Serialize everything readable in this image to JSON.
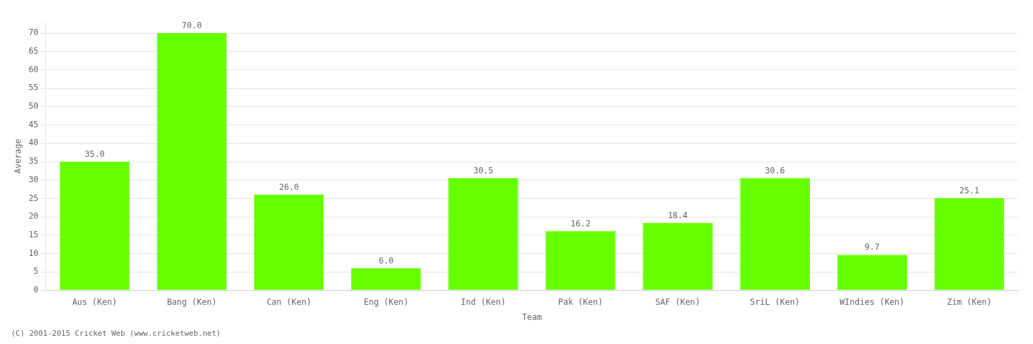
{
  "chart_data": {
    "type": "bar",
    "categories": [
      "Aus (Ken)",
      "Bang (Ken)",
      "Can (Ken)",
      "Eng (Ken)",
      "Ind (Ken)",
      "Pak (Ken)",
      "SAF (Ken)",
      "SriL (Ken)",
      "WIndies (Ken)",
      "Zim (Ken)"
    ],
    "values": [
      35.0,
      70.0,
      26.0,
      6.0,
      30.5,
      16.2,
      18.4,
      30.6,
      9.7,
      25.1
    ],
    "value_labels": [
      "35.0",
      "70.0",
      "26.0",
      "6.0",
      "30.5",
      "16.2",
      "18.4",
      "30.6",
      "9.7",
      "25.1"
    ],
    "data_labels": true,
    "color": "#66ff00",
    "xlabel": "Team",
    "ylabel": "Average",
    "ylim": [
      0,
      73
    ],
    "yticks": [
      0,
      5,
      10,
      15,
      20,
      25,
      30,
      35,
      40,
      45,
      50,
      55,
      60,
      65,
      70
    ],
    "grid": true,
    "annotations": [
      "(C) 2001-2015 Cricket Web (www.cricketweb.net)"
    ]
  }
}
